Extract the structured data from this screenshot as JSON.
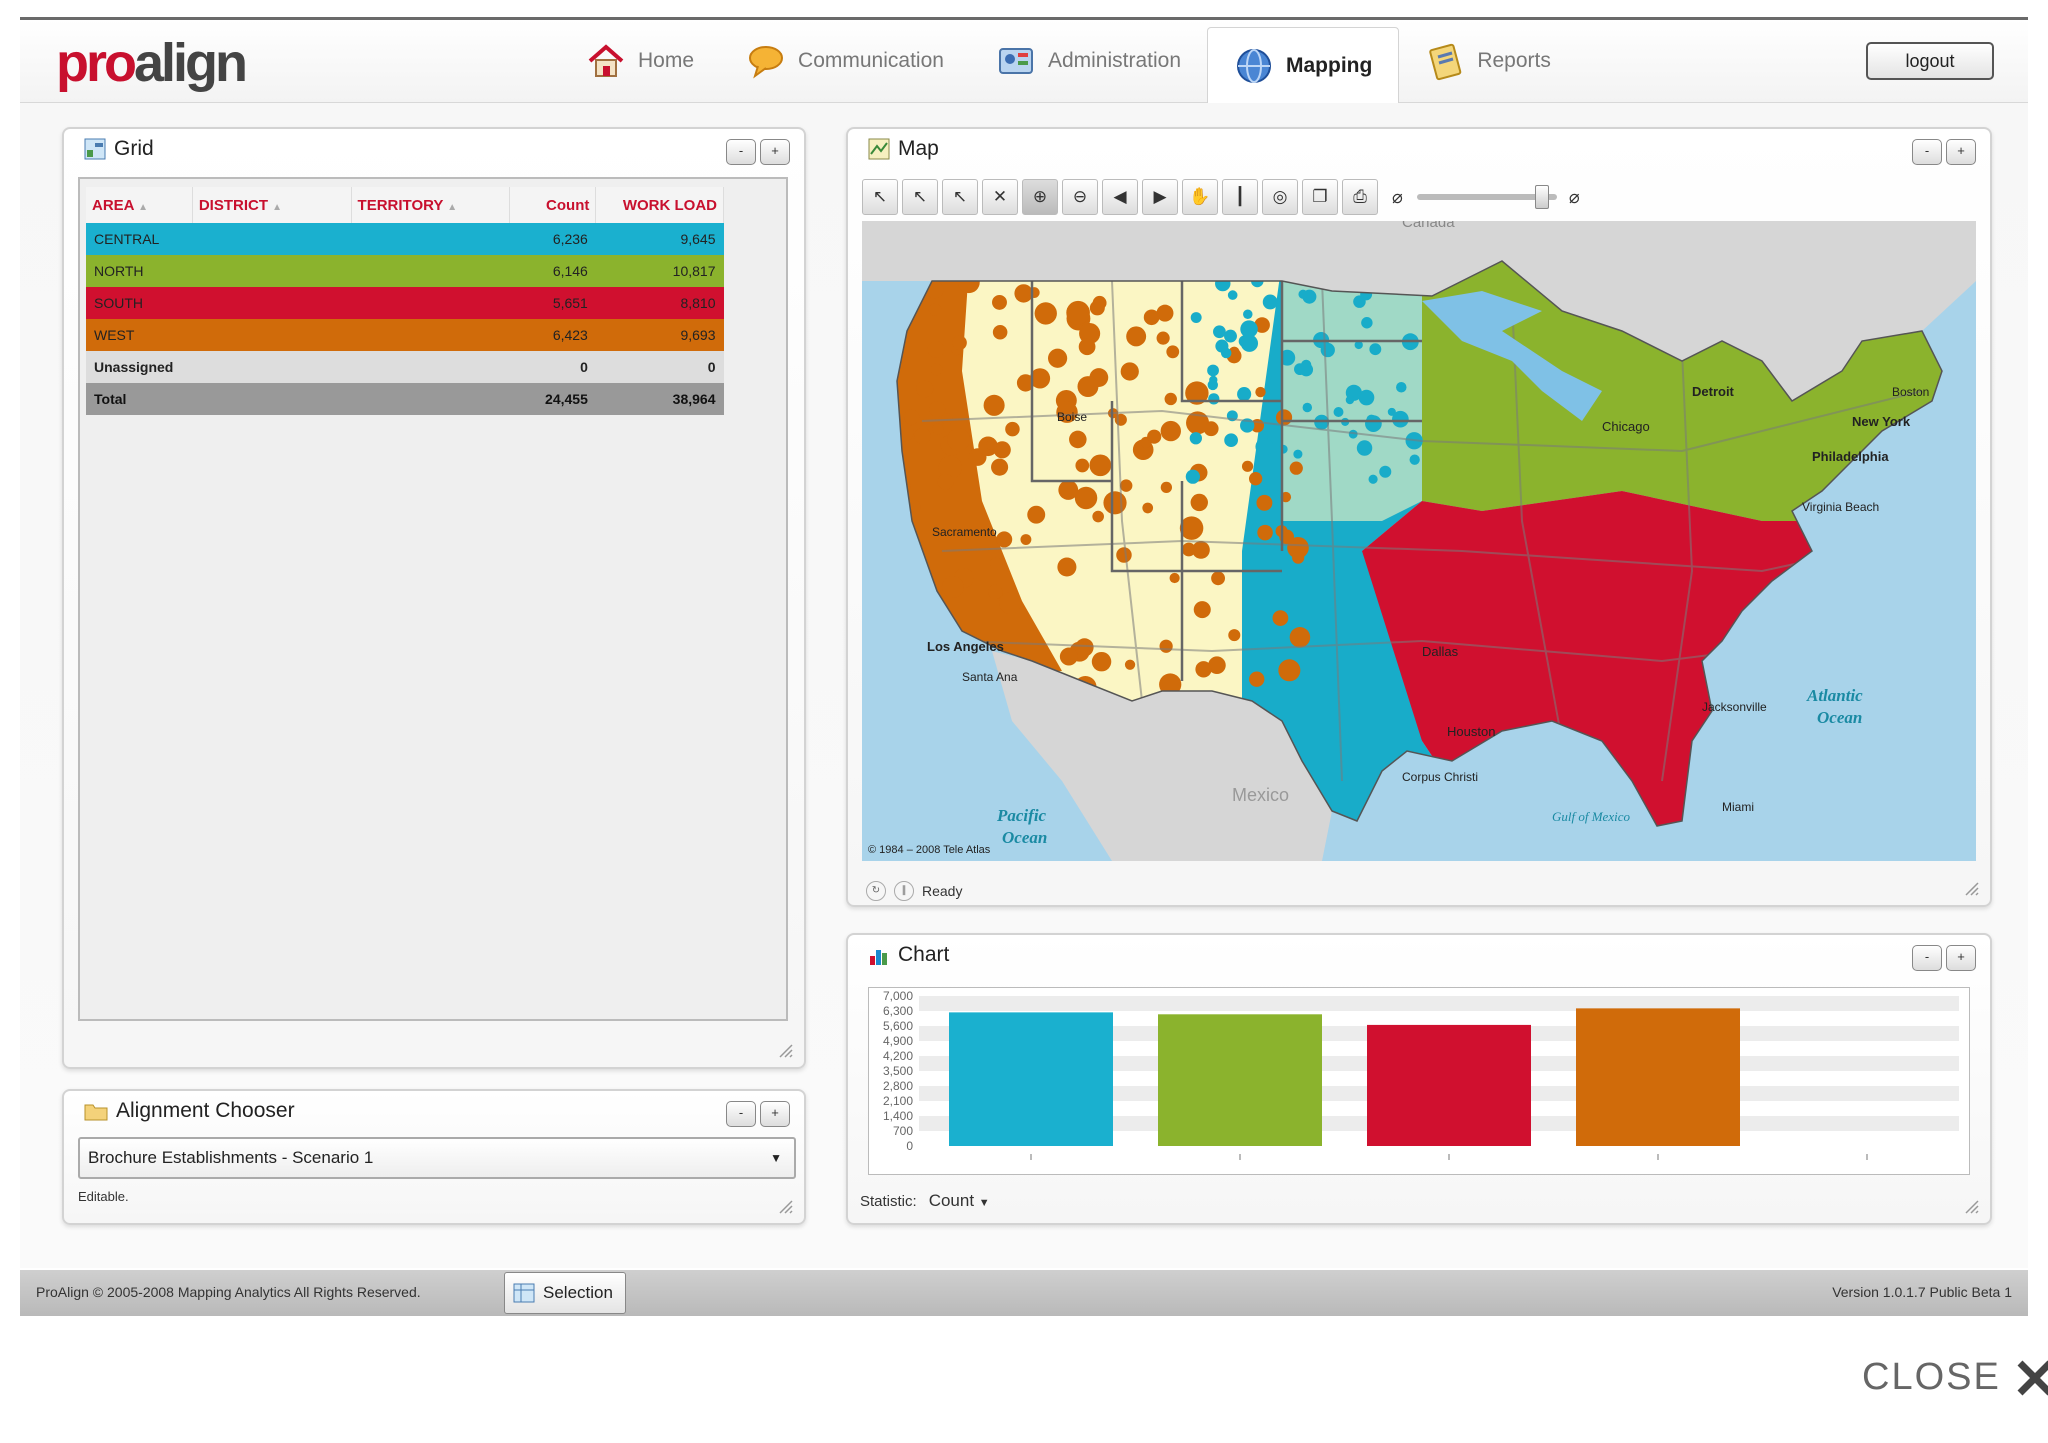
{
  "app": {
    "logo_pro": "pro",
    "logo_align": "align"
  },
  "nav": {
    "items": [
      {
        "label": "Home",
        "icon": "home-icon"
      },
      {
        "label": "Communication",
        "icon": "speech-bubble-icon"
      },
      {
        "label": "Administration",
        "icon": "admin-icon"
      },
      {
        "label": "Mapping",
        "icon": "globe-icon",
        "active": true
      },
      {
        "label": "Reports",
        "icon": "reports-icon"
      }
    ],
    "logout": "logout"
  },
  "grid_panel": {
    "title": "Grid",
    "columns": [
      "AREA",
      "DISTRICT",
      "TERRITORY",
      "Count",
      "WORK LOAD"
    ],
    "rows": [
      {
        "area": "CENTRAL",
        "count": "6,236",
        "workload": "9,645",
        "color": "#1ab0cf"
      },
      {
        "area": "NORTH",
        "count": "6,146",
        "workload": "10,817",
        "color": "#8bb32d"
      },
      {
        "area": "SOUTH",
        "count": "5,651",
        "workload": "8,810",
        "color": "#d0102f"
      },
      {
        "area": "WEST",
        "count": "6,423",
        "workload": "9,693",
        "color": "#d06b0a"
      }
    ],
    "unassigned": {
      "label": "Unassigned",
      "count": "0",
      "workload": "0"
    },
    "total": {
      "label": "Total",
      "count": "24,455",
      "workload": "38,964"
    }
  },
  "chooser_panel": {
    "title": "Alignment Chooser",
    "selected": "Brochure Establishments - Scenario 1",
    "status": "Editable."
  },
  "map_panel": {
    "title": "Map",
    "labels": {
      "canada": "Canada",
      "mexico": "Mexico",
      "pacific": "Pacific",
      "pacific2": "Ocean",
      "atlantic": "Atlantic",
      "atlantic2": "Ocean",
      "gulf": "Gulf of Mexico",
      "los_angeles": "Los Angeles",
      "philadelphia": "Philadelphia",
      "new_york": "New York",
      "dallas": "Dallas",
      "houston": "Houston",
      "detroit": "Detroit",
      "chicago": "Chicago",
      "boise": "Boise",
      "miami": "Miami",
      "santa_ana": "Santa Ana",
      "jacksonville": "Jacksonville",
      "corpus": "Corpus Christi",
      "virginia_beach": "Virginia Beach",
      "boston": "Boston",
      "sacramento": "Sacramento"
    },
    "copyright": "© 1984 – 2008 Tele Atlas",
    "status": "Ready"
  },
  "chart_panel": {
    "title": "Chart",
    "statistic_label": "Statistic:",
    "statistic_value": "Count"
  },
  "chart_data": {
    "type": "bar",
    "categories": [
      "CENTRAL",
      "NORTH",
      "SOUTH",
      "WEST"
    ],
    "values": [
      6236,
      6146,
      5651,
      6423
    ],
    "colors": [
      "#1ab0cf",
      "#8bb32d",
      "#d0102f",
      "#d06b0a"
    ],
    "yticks": [
      "7,000",
      "6,300",
      "5,600",
      "4,900",
      "4,200",
      "3,500",
      "2,800",
      "2,100",
      "1,400",
      "700",
      "0"
    ],
    "ylim": [
      0,
      7000
    ]
  },
  "footer": {
    "copyright": "ProAlign © 2005-2008 Mapping Analytics All Rights Reserved.",
    "selection": "Selection",
    "version": "Version 1.0.1.7 Public Beta 1"
  },
  "close_label": "CLOSE"
}
